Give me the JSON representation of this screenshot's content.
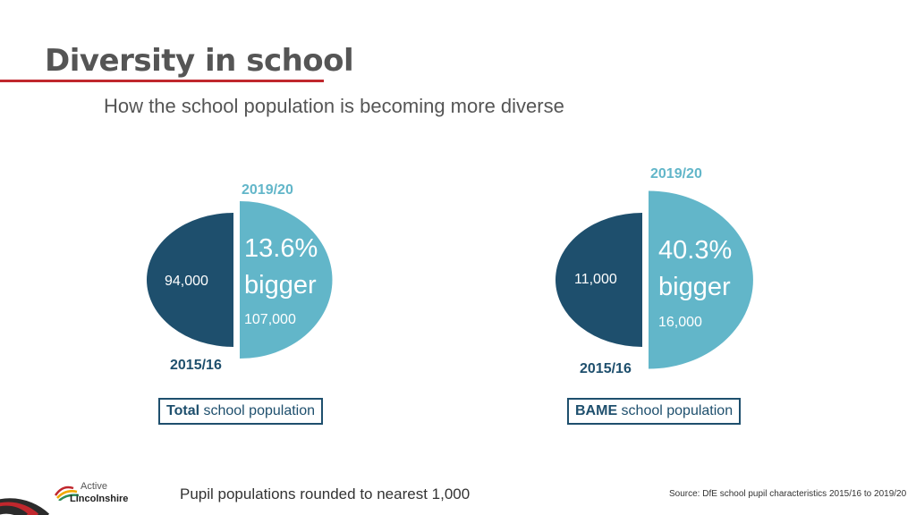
{
  "header": {
    "title": "Diversity in school",
    "subtitle": "How the school population is becoming more diverse"
  },
  "chart_data": [
    {
      "type": "pie",
      "title": "",
      "caption_bold": "Total",
      "caption_rest": " school population",
      "series": [
        {
          "name": "2015/16",
          "label": "94,000",
          "value": 94000
        },
        {
          "name": "2019/20",
          "label": "107,000",
          "value": 107000
        }
      ],
      "growth_pct": "13.6%",
      "growth_word": "bigger"
    },
    {
      "type": "pie",
      "title": "",
      "caption_bold": "BAME",
      "caption_rest": " school population",
      "series": [
        {
          "name": "2015/16",
          "label": "11,000",
          "value": 11000
        },
        {
          "name": "2019/20",
          "label": "16,000",
          "value": 16000
        }
      ],
      "growth_pct": "40.3%",
      "growth_word": "bigger"
    }
  ],
  "footer": {
    "note": "Pupil populations rounded to nearest 1,000",
    "source": "Source: DfE school pupil characteristics 2015/16 to 2019/20",
    "logo_text_1": "Active",
    "logo_text_2": "Lincolnshire"
  },
  "colors": {
    "old": "#1e4f6d",
    "new": "#62b6c9",
    "accent": "#c0272d"
  }
}
